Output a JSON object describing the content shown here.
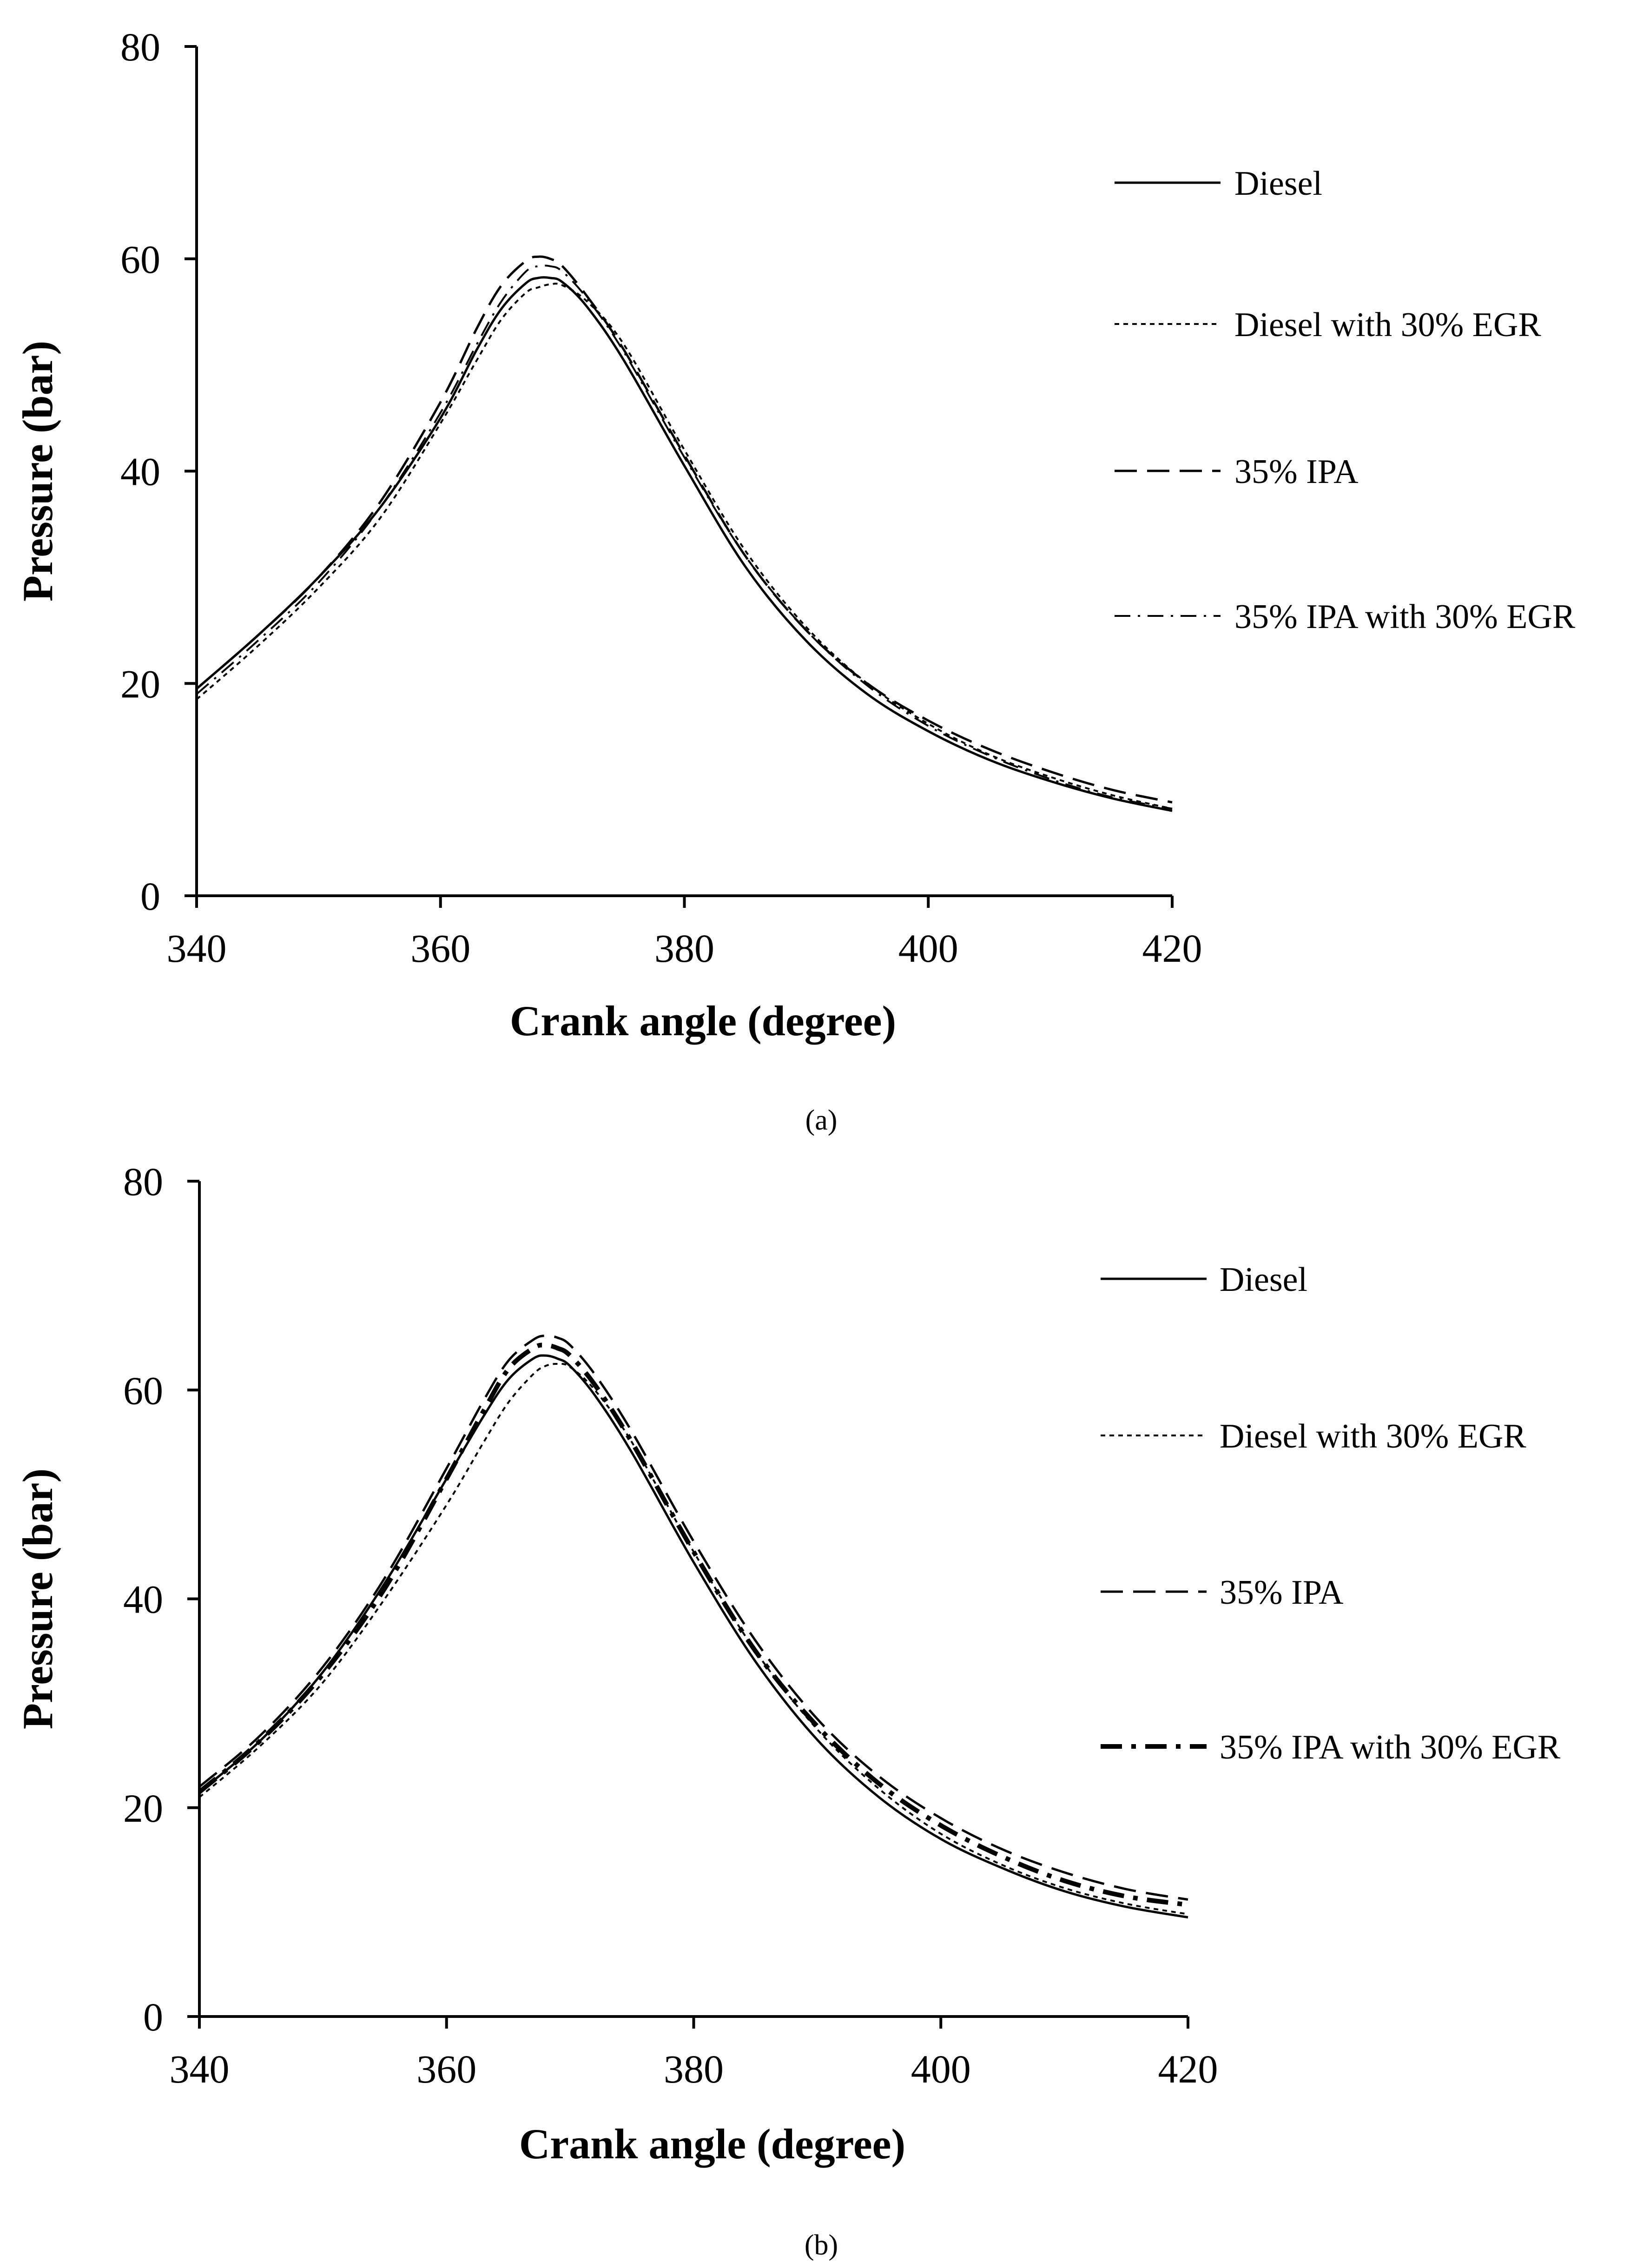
{
  "chart_data": [
    {
      "type": "line",
      "caption": "(a)",
      "xlabel": "Crank angle (degree)",
      "ylabel": "Pressure (bar)",
      "xlim": [
        340,
        420
      ],
      "ylim": [
        0,
        80
      ],
      "xticks": [
        340,
        360,
        380,
        400,
        420
      ],
      "yticks": [
        0,
        20,
        40,
        60,
        80
      ],
      "grid": false,
      "legend_position": "right",
      "series": [
        {
          "name": "Diesel",
          "style": "solid",
          "x": [
            340,
            345,
            350,
            355,
            360,
            363,
            365,
            367,
            368,
            369,
            370,
            372,
            375,
            380,
            385,
            390,
            395,
            400,
            405,
            410,
            415,
            420
          ],
          "y": [
            19.5,
            24.5,
            30.0,
            36.5,
            45.0,
            51.5,
            55.3,
            57.7,
            58.2,
            58.2,
            57.8,
            55.5,
            50.5,
            40.5,
            31.0,
            24.0,
            19.0,
            15.5,
            12.8,
            10.8,
            9.2,
            8.0
          ]
        },
        {
          "name": "Diesel with 30% EGR",
          "style": "dotted",
          "x": [
            340,
            345,
            350,
            355,
            360,
            363,
            365,
            367,
            368,
            369,
            370,
            372,
            375,
            380,
            385,
            390,
            395,
            400,
            405,
            410,
            415,
            420
          ],
          "y": [
            18.5,
            23.5,
            29.0,
            35.5,
            44.5,
            50.5,
            54.3,
            56.8,
            57.3,
            57.6,
            57.5,
            56.0,
            52.0,
            42.0,
            32.5,
            25.3,
            20.0,
            16.2,
            13.3,
            11.2,
            9.5,
            8.2
          ]
        },
        {
          "name": "35% IPA",
          "style": "dashed",
          "x": [
            340,
            345,
            350,
            355,
            360,
            363,
            365,
            367,
            368,
            369,
            370,
            372,
            375,
            380,
            385,
            390,
            395,
            400,
            405,
            410,
            415,
            420
          ],
          "y": [
            19.5,
            24.5,
            30.0,
            37.0,
            46.5,
            53.5,
            57.5,
            59.8,
            60.2,
            60.0,
            59.3,
            56.5,
            51.5,
            41.5,
            32.0,
            25.0,
            20.0,
            16.5,
            13.8,
            11.7,
            10.0,
            8.8
          ]
        },
        {
          "name": "35% IPA with 30% EGR",
          "style": "dash-dot",
          "x": [
            340,
            345,
            350,
            355,
            360,
            363,
            365,
            367,
            368,
            369,
            370,
            372,
            375,
            380,
            385,
            390,
            395,
            400,
            405,
            410,
            415,
            420
          ],
          "y": [
            19.0,
            24.0,
            29.5,
            36.5,
            45.5,
            52.0,
            56.0,
            58.8,
            59.3,
            59.3,
            58.8,
            56.3,
            51.3,
            41.3,
            32.0,
            25.0,
            19.8,
            16.0,
            13.2,
            11.0,
            9.3,
            8.2
          ]
        }
      ]
    },
    {
      "type": "line",
      "caption": "(b)",
      "xlabel": "Crank angle (degree)",
      "ylabel": "Pressure (bar)",
      "xlim": [
        340,
        420
      ],
      "ylim": [
        0,
        80
      ],
      "xticks": [
        340,
        360,
        380,
        400,
        420
      ],
      "yticks": [
        0,
        20,
        40,
        60,
        80
      ],
      "grid": false,
      "legend_position": "right",
      "series": [
        {
          "name": "Diesel",
          "style": "solid",
          "x": [
            340,
            345,
            350,
            355,
            360,
            363,
            365,
            367,
            368,
            369,
            370,
            372,
            375,
            380,
            385,
            390,
            395,
            400,
            405,
            410,
            415,
            420
          ],
          "y": [
            21.5,
            26.5,
            33.0,
            41.5,
            51.5,
            57.5,
            61.0,
            63.0,
            63.3,
            63.0,
            62.3,
            59.5,
            54.0,
            43.5,
            34.0,
            26.5,
            21.0,
            17.0,
            14.2,
            12.0,
            10.5,
            9.5
          ]
        },
        {
          "name": "Diesel with 30% EGR",
          "style": "dotted",
          "x": [
            340,
            345,
            350,
            355,
            360,
            363,
            365,
            367,
            368,
            369,
            370,
            372,
            375,
            380,
            385,
            390,
            395,
            400,
            405,
            410,
            415,
            420
          ],
          "y": [
            21.0,
            26.0,
            32.0,
            40.0,
            49.0,
            55.0,
            58.8,
            61.5,
            62.3,
            62.5,
            62.2,
            60.0,
            55.0,
            44.5,
            35.0,
            27.5,
            21.8,
            17.5,
            14.5,
            12.3,
            10.8,
            9.8
          ]
        },
        {
          "name": "35% IPA",
          "style": "dashed",
          "x": [
            340,
            345,
            350,
            355,
            360,
            363,
            365,
            367,
            368,
            369,
            370,
            372,
            375,
            380,
            385,
            390,
            395,
            400,
            405,
            410,
            415,
            420
          ],
          "y": [
            22.0,
            27.0,
            33.5,
            42.0,
            52.5,
            59.0,
            62.8,
            64.8,
            65.2,
            65.0,
            64.3,
            61.5,
            56.0,
            45.5,
            36.0,
            28.5,
            23.0,
            19.0,
            16.0,
            13.8,
            12.2,
            11.2
          ]
        },
        {
          "name": "35% IPA with 30% EGR",
          "style": "dash-dot-bold",
          "x": [
            340,
            345,
            350,
            355,
            360,
            363,
            365,
            367,
            368,
            369,
            370,
            372,
            375,
            380,
            385,
            390,
            395,
            400,
            405,
            410,
            415,
            420
          ],
          "y": [
            21.5,
            26.5,
            32.8,
            41.0,
            51.5,
            58.0,
            62.0,
            64.0,
            64.3,
            64.0,
            63.3,
            60.5,
            55.0,
            44.5,
            35.0,
            27.8,
            22.3,
            18.3,
            15.3,
            13.0,
            11.5,
            10.7
          ]
        }
      ]
    }
  ]
}
